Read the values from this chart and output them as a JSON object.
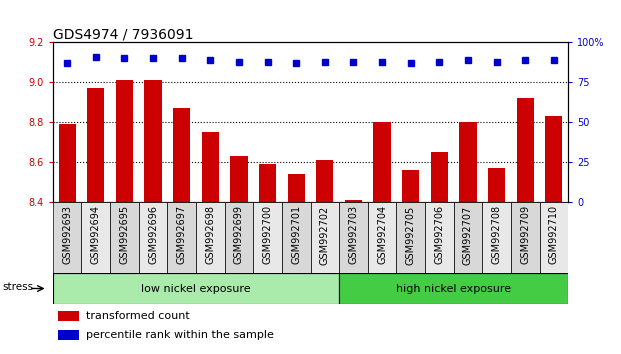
{
  "title": "GDS4974 / 7936091",
  "categories": [
    "GSM992693",
    "GSM992694",
    "GSM992695",
    "GSM992696",
    "GSM992697",
    "GSM992698",
    "GSM992699",
    "GSM992700",
    "GSM992701",
    "GSM992702",
    "GSM992703",
    "GSM992704",
    "GSM992705",
    "GSM992706",
    "GSM992707",
    "GSM992708",
    "GSM992709",
    "GSM992710"
  ],
  "bar_values": [
    8.79,
    8.97,
    9.01,
    9.01,
    8.87,
    8.75,
    8.63,
    8.59,
    8.54,
    8.61,
    8.41,
    8.8,
    8.56,
    8.65,
    8.8,
    8.57,
    8.92,
    8.83
  ],
  "dot_values": [
    87,
    91,
    90,
    90,
    90,
    89,
    88,
    88,
    87,
    88,
    88,
    88,
    87,
    88,
    89,
    88,
    89,
    89
  ],
  "bar_color": "#cc0000",
  "dot_color": "#0000cc",
  "ylim_left": [
    8.4,
    9.2
  ],
  "ylim_right": [
    0,
    100
  ],
  "yticks_left": [
    8.4,
    8.6,
    8.8,
    9.0,
    9.2
  ],
  "yticks_right": [
    0,
    25,
    50,
    75,
    100
  ],
  "ytick_labels_right": [
    "0",
    "25",
    "50",
    "75",
    "100%"
  ],
  "grid_values": [
    9.0,
    8.8,
    8.6
  ],
  "low_nickel_count": 10,
  "high_nickel_count": 8,
  "group_label_low": "low nickel exposure",
  "group_label_high": "high nickel exposure",
  "group_color_low": "#aaeaaa",
  "group_color_high": "#44cc44",
  "stress_label": "stress",
  "legend_bar_label": "transformed count",
  "legend_dot_label": "percentile rank within the sample",
  "bar_bottom": 8.4,
  "title_fontsize": 10,
  "tick_fontsize": 7,
  "axis_color_left": "#cc0000",
  "axis_color_right": "#0000cc",
  "xtick_bg_even": "#d8d8d8",
  "xtick_bg_odd": "#e8e8e8"
}
